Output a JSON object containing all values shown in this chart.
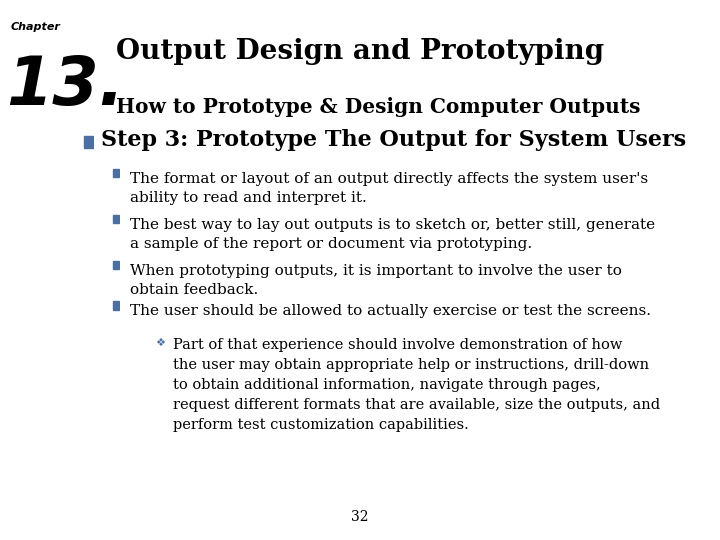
{
  "title": "Output Design and Prototyping",
  "subtitle": "How to Prototype & Design Computer Outputs",
  "step_header": "Step 3: Prototype The Output for System Users",
  "bullets": [
    "The format or layout of an output directly affects the system user's\nability to read and interpret it.",
    "The best way to lay out outputs is to sketch or, better still, generate\na sample of the report or document via prototyping.",
    "When prototyping outputs, it is important to involve the user to\nobtain feedback.",
    "The user should be allowed to actually exercise or test the screens."
  ],
  "sub_bullet_line1": "Part of that experience should involve demonstration of how",
  "sub_bullet_line2": "the user may obtain appropriate help or instructions, drill-down",
  "sub_bullet_line3": "to obtain additional information, navigate through pages,",
  "sub_bullet_line4": "request different formats that are available, size the outputs, and",
  "sub_bullet_line5": "perform test customization capabilities.",
  "page_number": "32",
  "bg_color": "#FFFFFF",
  "title_color": "#000000",
  "subtitle_color": "#000000",
  "step_color": "#000000",
  "bullet_color": "#4a6fa5",
  "text_color": "#000000",
  "title_fontsize": 20,
  "subtitle_fontsize": 14.5,
  "step_fontsize": 16,
  "body_fontsize": 11,
  "sub_fontsize": 10.5
}
